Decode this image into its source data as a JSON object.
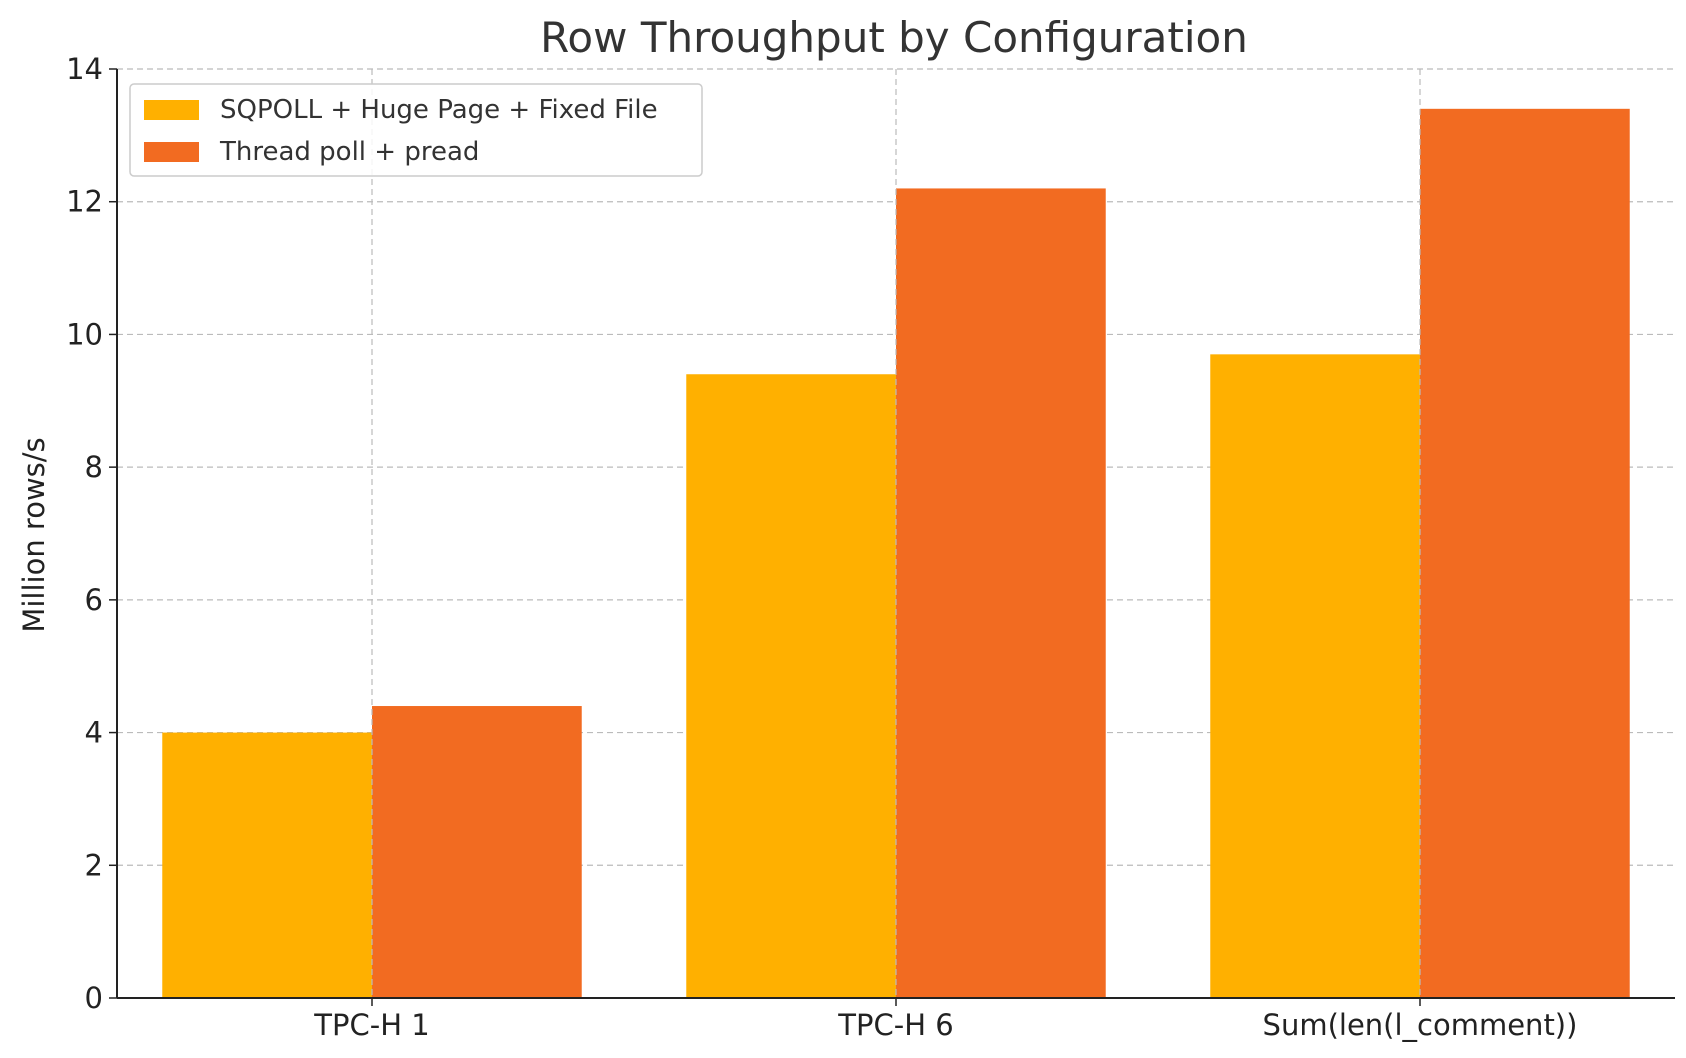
{
  "chart_data": {
    "type": "bar",
    "title": "Row Throughput by Configuration",
    "xlabel": "",
    "ylabel": "Million rows/s",
    "categories": [
      "TPC-H 1",
      "TPC-H 6",
      "Sum(len(l_comment))"
    ],
    "series": [
      {
        "name": "SQPOLL + Huge Page + Fixed File",
        "values": [
          4.0,
          9.4,
          9.7
        ],
        "color": "#FFB000"
      },
      {
        "name": "Thread poll + pread",
        "values": [
          4.4,
          12.2,
          13.4
        ],
        "color": "#F26B21"
      }
    ],
    "ylim": [
      0,
      14
    ],
    "yticks": [
      "0",
      "2",
      "4",
      "6",
      "8",
      "10",
      "12",
      "14"
    ],
    "grid": true,
    "legend_position": "top-left"
  }
}
